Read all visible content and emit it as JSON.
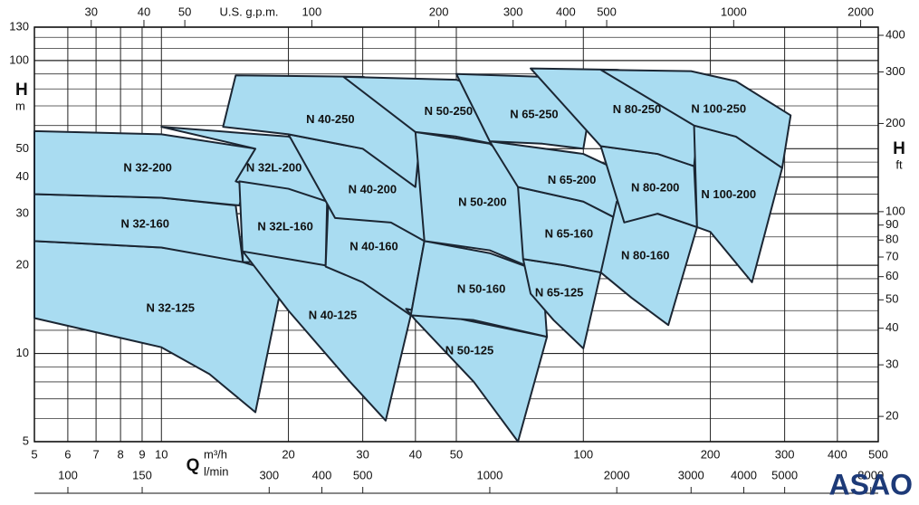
{
  "chart_data": {
    "type": "region",
    "fill": "#a9dcf1",
    "stroke": "#1b2633",
    "x_label": "Q",
    "x_unit": "m³/h",
    "x2_unit": "l/min",
    "top_unit": "U.S. g.p.m.",
    "y_label": "H",
    "y_unit": "m",
    "y2_label": "H",
    "y2_unit": "ft",
    "brand": "ASAO",
    "log_x": true,
    "log_y": true,
    "xlim": [
      5,
      500
    ],
    "ylim": [
      5,
      130
    ],
    "xticks": [
      5,
      6,
      7,
      8,
      9,
      10,
      20,
      30,
      40,
      50,
      100,
      200,
      300,
      400,
      500
    ],
    "yticks": [
      5,
      10,
      20,
      30,
      40,
      50,
      100,
      130
    ],
    "ygrid": [
      6,
      7,
      8,
      9,
      12,
      14,
      16,
      18,
      25,
      35,
      45,
      60,
      70,
      80,
      90,
      110,
      120
    ],
    "toplim": [
      22.0,
      2201.5
    ],
    "topticks": [
      30,
      40,
      50,
      100,
      200,
      300,
      400,
      500,
      1000,
      2000
    ],
    "x2lim": [
      83.3,
      8333
    ],
    "x2ticks": [
      100,
      150,
      300,
      400,
      500,
      1000,
      2000,
      3000,
      4000,
      5000,
      8000
    ],
    "y2lim": [
      16.4,
      426.5
    ],
    "y2ticks": [
      20,
      30,
      40,
      50,
      60,
      70,
      80,
      90,
      100,
      200,
      300,
      400
    ],
    "series": [
      {
        "name": "N 32-125",
        "Q": [
          5,
          10,
          14,
          19.5,
          16.7,
          13,
          10,
          5
        ],
        "H": [
          24.2,
          23,
          21.5,
          18.6,
          6.3,
          8.5,
          10.5,
          13.2
        ]
      },
      {
        "name": "N 32-160",
        "Q": [
          5,
          10,
          15,
          15.6,
          10,
          5
        ],
        "H": [
          35,
          34,
          32,
          20.5,
          23,
          24.2
        ]
      },
      {
        "name": "N 32-200",
        "Q": [
          5,
          10,
          16.7,
          15.3,
          10,
          5
        ],
        "H": [
          57.4,
          56,
          50,
          32,
          34,
          35
        ]
      },
      {
        "name": "N 32L-200",
        "Q": [
          10,
          20,
          28.5,
          25.8,
          20,
          15,
          16.7
        ],
        "H": [
          59.4,
          55,
          43.6,
          29,
          33,
          38.7,
          50
        ]
      },
      {
        "name": "N 32L-160",
        "Q": [
          15.3,
          20,
          24.7,
          24.5,
          20,
          15.6
        ],
        "H": [
          38.7,
          36.5,
          33,
          19.8,
          20.5,
          20.5
        ]
      },
      {
        "name": "N 40-125",
        "Q": [
          15.6,
          20,
          30,
          39,
          34,
          28,
          20
        ],
        "H": [
          22.3,
          21,
          19,
          13.5,
          5.9,
          8,
          14
        ]
      },
      {
        "name": "N 40-160",
        "Q": [
          25,
          35,
          42,
          39,
          30,
          24.5
        ],
        "H": [
          40,
          33,
          24.2,
          13.5,
          17.5,
          19.8
        ]
      },
      {
        "name": "N 40-200",
        "Q": [
          20,
          30,
          44,
          42,
          35,
          25.8
        ],
        "H": [
          56,
          50,
          40,
          24.2,
          28,
          29
        ]
      },
      {
        "name": "N 40-250",
        "Q": [
          14,
          15,
          30,
          42,
          40,
          30,
          20
        ],
        "H": [
          59.4,
          89,
          88,
          79,
          37,
          50,
          56
        ]
      },
      {
        "name": "N 50-125",
        "Q": [
          38,
          50,
          82,
          70,
          55,
          40
        ],
        "H": [
          14.2,
          13.2,
          11.4,
          5,
          8,
          13
        ]
      },
      {
        "name": "N 50-160",
        "Q": [
          42,
          60,
          80,
          82,
          55,
          39
        ],
        "H": [
          24.2,
          22,
          18.9,
          11.4,
          13,
          13.5
        ]
      },
      {
        "name": "N 50-200",
        "Q": [
          40,
          60,
          76,
          80,
          60,
          42
        ],
        "H": [
          57,
          52,
          40,
          18.9,
          22.5,
          24.2
        ]
      },
      {
        "name": "N 50-250",
        "Q": [
          27,
          50,
          69,
          65,
          50,
          40
        ],
        "H": [
          88,
          86,
          73,
          51,
          55,
          57
        ]
      },
      {
        "name": "N 65-125",
        "Q": [
          72,
          90,
          110,
          100,
          85,
          75
        ],
        "H": [
          21,
          20,
          18.9,
          10.4,
          13,
          16
        ]
      },
      {
        "name": "N 65-160",
        "Q": [
          70,
          100,
          125,
          110,
          90,
          72
        ],
        "H": [
          37,
          33,
          28,
          18.9,
          20,
          21
        ]
      },
      {
        "name": "N 65-200",
        "Q": [
          60,
          100,
          131,
          125,
          100,
          70
        ],
        "H": [
          53,
          48,
          40,
          28,
          33,
          37
        ]
      },
      {
        "name": "N 65-250",
        "Q": [
          50,
          80,
          104,
          100,
          80,
          60
        ],
        "H": [
          90,
          88,
          70,
          50,
          52,
          53
        ]
      },
      {
        "name": "N 80-160",
        "Q": [
          120,
          150,
          186,
          159,
          130,
          110
        ],
        "H": [
          33,
          30,
          27,
          12.5,
          15.5,
          18.9
        ]
      },
      {
        "name": "N 80-200",
        "Q": [
          110,
          150,
          183,
          186,
          150,
          125
        ],
        "H": [
          51,
          48,
          43.6,
          27,
          30,
          28
        ]
      },
      {
        "name": "N 80-250",
        "Q": [
          75,
          120,
          150,
          190,
          183,
          150,
          110
        ],
        "H": [
          94,
          93,
          90,
          79,
          43.6,
          48,
          51
        ]
      },
      {
        "name": "N 100-200",
        "Q": [
          183,
          230,
          296,
          251,
          200,
          186
        ],
        "H": [
          60,
          55,
          43,
          17.5,
          26,
          27
        ]
      },
      {
        "name": "N 100-250",
        "Q": [
          110,
          180,
          230,
          310,
          296,
          230,
          183
        ],
        "H": [
          93,
          92,
          85,
          65,
          43,
          55,
          60
        ]
      }
    ]
  }
}
